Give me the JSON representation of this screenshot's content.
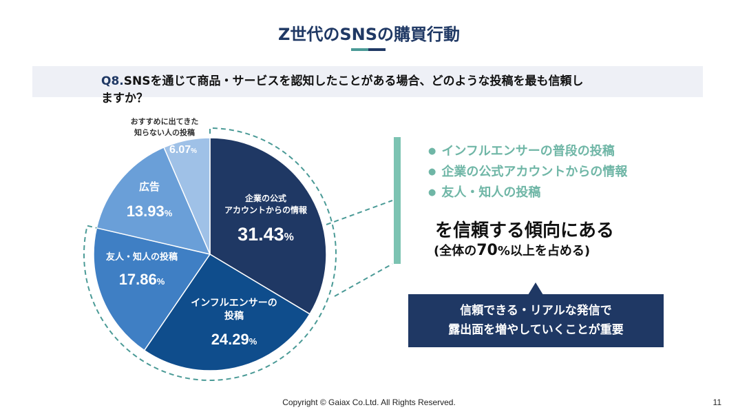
{
  "slide": {
    "title": "Z世代のSNSの購買行動",
    "question_number": "Q8.",
    "question_line1": "SNSを通じて商品・サービスを認知したことがある場合、どのような投稿を最も信頼し",
    "question_line2": "ますか？"
  },
  "chart_data": {
    "type": "pie",
    "title": "",
    "unit": "%",
    "start_angle_deg": 0,
    "direction": "clockwise",
    "slices": [
      {
        "label_lines": [
          "企業の公式",
          "アカウントからの情報"
        ],
        "value": 31.43,
        "value_text": "31.43",
        "color": "#1f3864"
      },
      {
        "label_lines": [
          "インフルエンサーの",
          "投稿"
        ],
        "value": 24.29,
        "value_text": "24.29",
        "color": "#0f4d8c"
      },
      {
        "label_lines": [
          "友人・知人の投稿"
        ],
        "value": 17.86,
        "value_text": "17.86",
        "color": "#3f7fc4"
      },
      {
        "label_lines": [
          "広告"
        ],
        "value": 13.93,
        "value_text": "13.93",
        "color": "#6a9fd8"
      },
      {
        "label_lines": [
          "おすすめに出てきた",
          "知らない人の投稿"
        ],
        "value": 6.07,
        "value_text": "6.07",
        "color": "#9fc1e7"
      }
    ],
    "highlight_group": {
      "slice_indices": [
        0,
        1,
        2
      ],
      "style": "dashed teal outline"
    }
  },
  "findings": {
    "bullet_glyph": "●",
    "bullets": [
      "インフルエンサーの普段の投稿",
      "企業の公式アカウントからの情報",
      "友人・知人の投稿"
    ],
    "main_text": "を信頼する傾向にある",
    "sub_prefix": "(全体の",
    "sub_number": "70",
    "sub_suffix": "%以上を占める)"
  },
  "callout": {
    "line1": "信頼できる・リアルな発信で",
    "line2": "露出面を増やしていくことが重要"
  },
  "footer": {
    "copyright": "Copyright © Gaiax Co.Ltd. All Rights Reserved.",
    "page_number": "11"
  },
  "colors": {
    "title": "#1f3864",
    "accent_teal": "#7cc3b2",
    "dashed_outline": "#4a9a96"
  }
}
